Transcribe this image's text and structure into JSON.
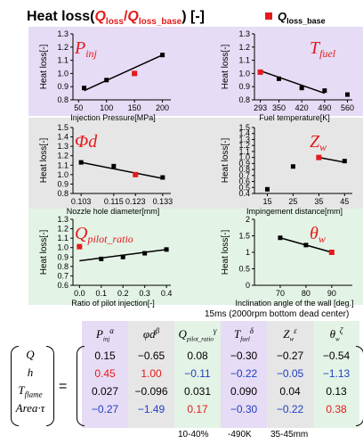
{
  "header": {
    "title_prefix": "Heat loss(",
    "q": "Q",
    "q_sub": "loss",
    "slash": "/",
    "q_base": "Q",
    "q_base_sub": "loss_base",
    "title_suffix": ") [-]",
    "legend_q": "Q",
    "legend_sub": "loss_base",
    "colors": {
      "marker": "#e41a1c",
      "label": "#e41a1c"
    }
  },
  "chart_data": [
    {
      "type": "scatter",
      "ylabel": "Heat loss[-]",
      "xlabel": "Injection Pressure[MPa]",
      "param_main": "P",
      "param_sub": "inj",
      "xticks": [
        "50",
        "100",
        "150",
        "200"
      ],
      "yticks": [
        "0.8",
        "0.9",
        "1.0",
        "1.1",
        "1.2",
        "1.3"
      ],
      "xlim": [
        40,
        215
      ],
      "ylim": [
        0.8,
        1.3
      ],
      "x": [
        60,
        100,
        200
      ],
      "y": [
        0.89,
        0.95,
        1.14
      ],
      "base": {
        "x": 150,
        "y": 1.0
      },
      "fit": [
        [
          60,
          0.87
        ],
        [
          200,
          1.14
        ]
      ],
      "bg": "#e6dcf5"
    },
    {
      "type": "scatter",
      "ylabel": "Heat loss[-]",
      "xlabel": "Fuel temperature[K]",
      "param_main": "T",
      "param_sub": "fuel",
      "xticks": [
        "293",
        "350",
        "420",
        "490",
        "560"
      ],
      "yticks": [
        "0.8",
        "0.9",
        "1.0",
        "1.1",
        "1.2",
        "1.3"
      ],
      "xlim": [
        275,
        575
      ],
      "ylim": [
        0.8,
        1.3
      ],
      "x": [
        350,
        420,
        490,
        560
      ],
      "y": [
        0.96,
        0.89,
        0.87,
        0.84
      ],
      "base": {
        "x": 293,
        "y": 1.01
      },
      "fit": [
        [
          293,
          1.02
        ],
        [
          490,
          0.85
        ]
      ],
      "bg": "#e6dcf5"
    },
    {
      "type": "scatter",
      "ylabel": "Heat loss[-]",
      "xlabel": "Nozzle hole diameter[mm]",
      "param_main": "Φd",
      "param_sub": "",
      "xticks": [
        "0.103",
        "0.115",
        "0.123",
        "0.133"
      ],
      "yticks": [
        "0.8",
        "0.9",
        "1.0",
        "1.1",
        "1.2",
        "1.3",
        "1.4",
        "1.5"
      ],
      "xlim": [
        0.1,
        0.136
      ],
      "ylim": [
        0.8,
        1.5
      ],
      "x": [
        0.103,
        0.115,
        0.133
      ],
      "y": [
        1.13,
        1.09,
        0.97
      ],
      "base": {
        "x": 0.123,
        "y": 1.0
      },
      "fit": [
        [
          0.103,
          1.13
        ],
        [
          0.133,
          0.96
        ]
      ],
      "bg": "#e6e6e6"
    },
    {
      "type": "scatter",
      "ylabel": "Heat loss[-]",
      "xlabel": "Impingement distance[mm]",
      "param_main": "Z",
      "param_sub": "w",
      "xticks": [
        "15",
        "25",
        "35",
        "45"
      ],
      "yticks": [
        "0.4",
        "0.5",
        "0.6",
        "0.7",
        "0.8",
        "0.9",
        "1.0",
        "1.1",
        "1.2",
        "1.3",
        "1.4",
        "1.5"
      ],
      "xlim": [
        10,
        48
      ],
      "ylim": [
        0.4,
        1.5
      ],
      "x": [
        15,
        25,
        45
      ],
      "y": [
        0.47,
        0.85,
        0.94
      ],
      "base": {
        "x": 35,
        "y": 1.0
      },
      "fit": [
        [
          35,
          1.0
        ],
        [
          45,
          0.92
        ]
      ],
      "bg": "#e6e6e6"
    },
    {
      "type": "scatter",
      "ylabel": "Heat loss[-]",
      "xlabel": "Ratio of pilot injection[-]",
      "param_main": "Q",
      "param_sub": "pilot_ratio",
      "xticks": [
        "0.0",
        "0.1",
        "0.2",
        "0.3",
        "0.4"
      ],
      "yticks": [
        "0.6",
        "0.7",
        "0.8",
        "0.9",
        "1.0",
        "1.1",
        "1.2",
        "1.3"
      ],
      "xlim": [
        -0.03,
        0.42
      ],
      "ylim": [
        0.6,
        1.3
      ],
      "x": [
        0.1,
        0.2,
        0.3,
        0.4
      ],
      "y": [
        0.88,
        0.9,
        0.94,
        0.98
      ],
      "base": {
        "x": 0.0,
        "y": 1.01
      },
      "fit": [
        [
          0.0,
          0.86
        ],
        [
          0.4,
          0.98
        ]
      ],
      "bg": "#e3f3e6"
    },
    {
      "type": "scatter",
      "ylabel": "Heat loss[-]",
      "xlabel": "Inclination angle of the wall [deg.]",
      "param_main": "θ",
      "param_sub": "w",
      "xticks": [
        "70",
        "80",
        "90"
      ],
      "yticks": [
        "0",
        "0.5",
        "1",
        "1.5",
        "2"
      ],
      "xlim": [
        60,
        98
      ],
      "ylim": [
        0,
        2
      ],
      "x": [
        70,
        80
      ],
      "y": [
        1.44,
        1.22
      ],
      "base": {
        "x": 90,
        "y": 1.0
      },
      "fit": [
        [
          70,
          1.44
        ],
        [
          90,
          1.0
        ]
      ],
      "bg": "#e3f3e6"
    }
  ],
  "note": "15ms (2000rpm bottom dead center)",
  "equation": {
    "rows": [
      "Q",
      "h",
      "T",
      "Area·τ"
    ],
    "row_subs": [
      "",
      "",
      "flame",
      ""
    ],
    "equals": "=",
    "columns": [
      {
        "main": "P",
        "sub": "inj",
        "sup": "α"
      },
      {
        "main": "φd",
        "sub": "",
        "sup": "β"
      },
      {
        "main": "Q",
        "sub": "pilot_ratio",
        "sup": "γ"
      },
      {
        "main": "T",
        "sub": "fuel",
        "sup": "δ"
      },
      {
        "main": "Z",
        "sub": "w",
        "sup": "ε"
      },
      {
        "main": "θ",
        "sub": "w",
        "sup": "ζ"
      }
    ],
    "values": [
      [
        "0.15",
        "−0.65",
        "0.08",
        "−0.30",
        "−0.27",
        "−0.54"
      ],
      [
        "0.45",
        "1.00",
        "−0.11",
        "−0.22",
        "−0.05",
        "−1.13"
      ],
      [
        "0.027",
        "−0.096",
        "0.031",
        "0.090",
        "0.04",
        "0.13"
      ],
      [
        "−0.27",
        "−1.49",
        "0.17",
        "−0.30",
        "−0.22",
        "0.38"
      ]
    ],
    "colors": [
      [
        "#000",
        "#000",
        "#000",
        "#000",
        "#000",
        "#000"
      ],
      [
        "#e41a1c",
        "#e41a1c",
        "#1f3fbf",
        "#1f3fbf",
        "#1f3fbf",
        "#1f3fbf"
      ],
      [
        "#000",
        "#000",
        "#000",
        "#000",
        "#000",
        "#000"
      ],
      [
        "#1f3fbf",
        "#1f3fbf",
        "#e41a1c",
        "#1f3fbf",
        "#1f3fbf",
        "#e41a1c"
      ]
    ],
    "footnotes": [
      "10-40%",
      "-490K",
      "35-45mm"
    ],
    "col_bgs": [
      "#e6dcf5",
      "#e6e6e6",
      "#e3f3e6",
      "#e6dcf5",
      "#e6e6e6",
      "#e3f3e6"
    ]
  }
}
